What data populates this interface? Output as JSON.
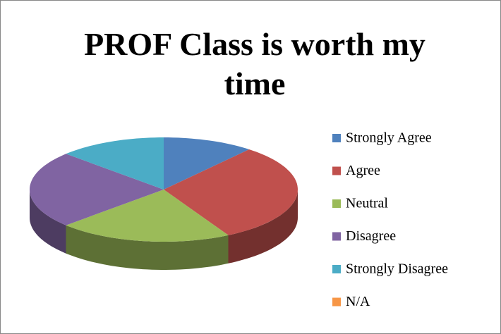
{
  "chart_data": {
    "type": "pie",
    "title": "PROF Class is worth my time",
    "categories": [
      "Strongly Agree",
      "Agree",
      "Neutral",
      "Disagree",
      "Strongly Disagree",
      "N/A"
    ],
    "values": [
      11,
      31,
      21,
      24,
      13,
      0
    ],
    "colors": [
      "#4f81bd",
      "#c0504d",
      "#9bbb59",
      "#8064a2",
      "#4bacc6",
      "#f79646"
    ],
    "legend": "right"
  }
}
